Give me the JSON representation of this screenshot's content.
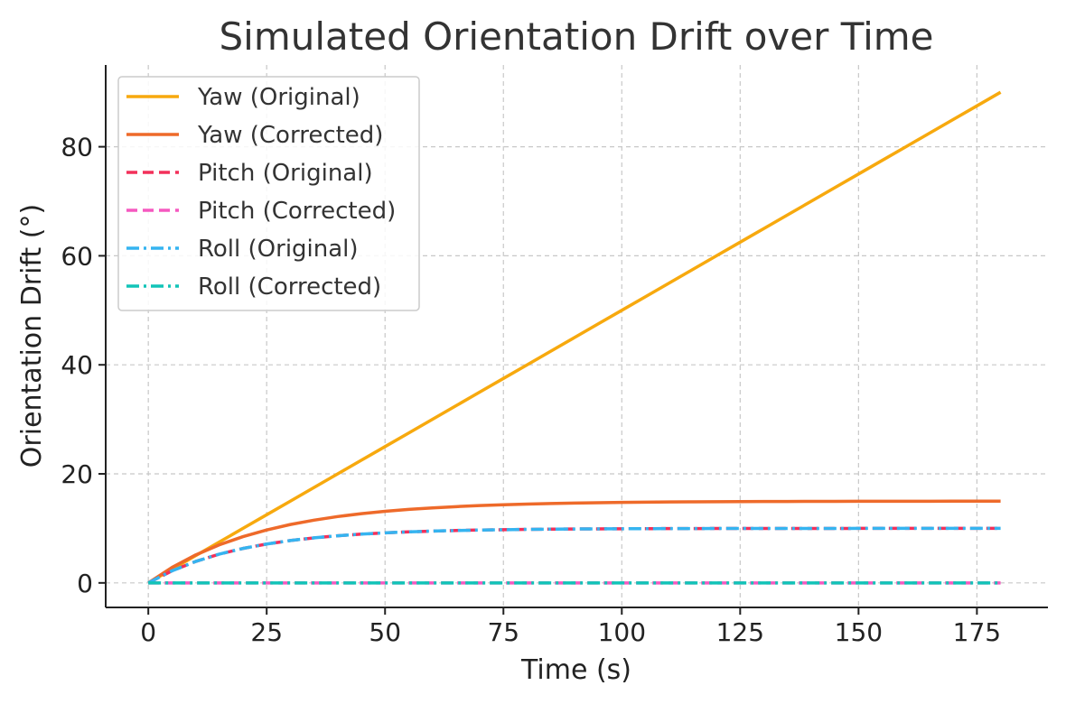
{
  "chart_data": {
    "type": "line",
    "title": "Simulated Orientation Drift over Time",
    "xlabel": "Time (s)",
    "ylabel": "Orientation Drift (°)",
    "xlim": [
      -9,
      190
    ],
    "ylim": [
      -4.5,
      95
    ],
    "x_ticks": [
      0,
      25,
      50,
      75,
      100,
      125,
      150,
      175
    ],
    "y_ticks": [
      0,
      20,
      40,
      60,
      80
    ],
    "grid": true,
    "legend_position": "top-left",
    "x": [
      0,
      5,
      10,
      15,
      20,
      25,
      30,
      35,
      40,
      45,
      50,
      55,
      60,
      65,
      70,
      75,
      80,
      85,
      90,
      95,
      100,
      105,
      110,
      115,
      120,
      125,
      130,
      135,
      140,
      145,
      150,
      155,
      160,
      165,
      170,
      175,
      180
    ],
    "series": [
      {
        "name": "Yaw (Original)",
        "color": "#F7A90E",
        "style": "solid",
        "values": [
          0,
          2.5,
          5,
          7.5,
          10,
          12.5,
          15,
          17.5,
          20,
          22.5,
          25,
          27.5,
          30,
          32.5,
          35,
          37.5,
          40,
          42.5,
          45,
          47.5,
          50,
          52.5,
          55,
          57.5,
          60,
          62.5,
          65,
          67.5,
          70,
          72.5,
          75,
          77.5,
          80,
          82.5,
          85,
          87.5,
          90
        ]
      },
      {
        "name": "Yaw (Corrected)",
        "color": "#EE6A2A",
        "style": "solid",
        "values": [
          0,
          2.83,
          5.13,
          6.99,
          8.49,
          9.71,
          10.71,
          11.51,
          12.17,
          12.7,
          13.13,
          13.48,
          13.76,
          13.99,
          14.18,
          14.34,
          14.46,
          14.56,
          14.64,
          14.71,
          14.76,
          14.81,
          14.84,
          14.87,
          14.89,
          14.91,
          14.93,
          14.94,
          14.95,
          14.96,
          14.97,
          14.97,
          14.98,
          14.98,
          14.99,
          14.99,
          14.99
        ]
      },
      {
        "name": "Pitch (Original)",
        "color": "#F2305A",
        "style": "dashed",
        "values": [
          0,
          2.21,
          3.93,
          5.28,
          6.32,
          7.13,
          7.77,
          8.26,
          8.65,
          8.95,
          9.18,
          9.36,
          9.5,
          9.61,
          9.7,
          9.76,
          9.82,
          9.86,
          9.89,
          9.91,
          9.93,
          9.95,
          9.96,
          9.97,
          9.98,
          9.98,
          9.99,
          9.99,
          9.99,
          9.99,
          10.0,
          10.0,
          10.0,
          10.0,
          10.0,
          10.0,
          10.0
        ]
      },
      {
        "name": "Pitch (Corrected)",
        "color": "#F559C0",
        "style": "dashed",
        "values": [
          0,
          0,
          0,
          0,
          0,
          0,
          0,
          0,
          0,
          0,
          0,
          0,
          0,
          0,
          0,
          0,
          0,
          0,
          0,
          0,
          0,
          0,
          0,
          0,
          0,
          0,
          0,
          0,
          0,
          0,
          0,
          0,
          0,
          0,
          0,
          0,
          0
        ]
      },
      {
        "name": "Roll (Original)",
        "color": "#35B4F0",
        "style": "dashdot",
        "values": [
          0,
          2.21,
          3.93,
          5.28,
          6.32,
          7.13,
          7.77,
          8.26,
          8.65,
          8.95,
          9.18,
          9.36,
          9.5,
          9.61,
          9.7,
          9.76,
          9.82,
          9.86,
          9.89,
          9.91,
          9.93,
          9.95,
          9.96,
          9.97,
          9.98,
          9.98,
          9.99,
          9.99,
          9.99,
          9.99,
          10.0,
          10.0,
          10.0,
          10.0,
          10.0,
          10.0,
          10.0
        ]
      },
      {
        "name": "Roll (Corrected)",
        "color": "#12C4B8",
        "style": "dashdot",
        "values": [
          0,
          0,
          0,
          0,
          0,
          0,
          0,
          0,
          0,
          0,
          0,
          0,
          0,
          0,
          0,
          0,
          0,
          0,
          0,
          0,
          0,
          0,
          0,
          0,
          0,
          0,
          0,
          0,
          0,
          0,
          0,
          0,
          0,
          0,
          0,
          0,
          0
        ]
      }
    ]
  }
}
